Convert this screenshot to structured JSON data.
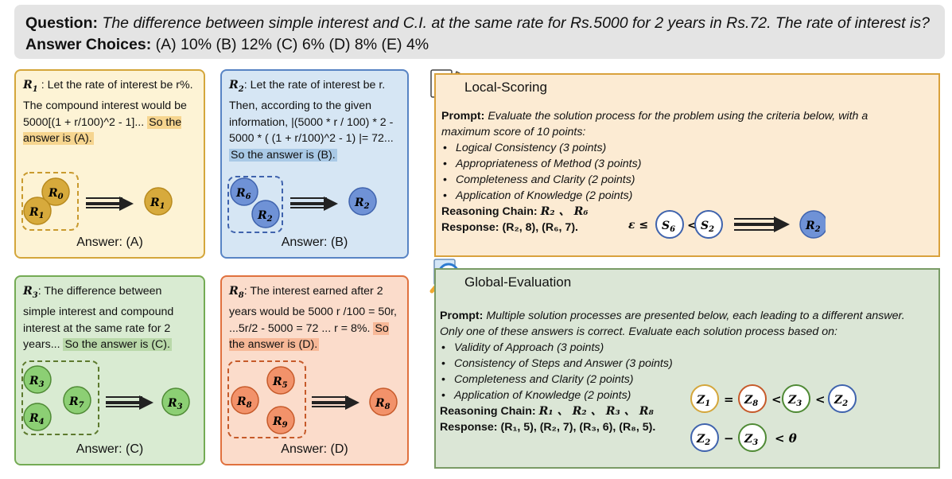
{
  "question": {
    "label": "Question:",
    "text": "The difference between simple interest and C.I. at the same rate for Rs.5000 for 2 years in Rs.72. The rate of interest is?",
    "choices_label": "Answer Choices:",
    "choices": "(A) 10% (B) 12% (C) 6% (D) 8% (E) 4%"
  },
  "cards": [
    {
      "label": "R",
      "sub": "1",
      "text": " : Let the rate of interest be r%. The compound interest would be 5000[(1 + r/100)^2 - 1]... ",
      "highlight": "So the answer is (A).",
      "answer": "Answer: (A)",
      "nodes": [
        {
          "t": "R",
          "s": "0"
        },
        {
          "t": "R",
          "s": "1"
        }
      ],
      "result": {
        "t": "R",
        "s": "1"
      },
      "color": "#d7aa3c",
      "stroke": "#b88a1e",
      "dash": "#c99a2e"
    },
    {
      "label": "R",
      "sub": "2",
      "text": ": Let the rate of interest be r. Then, according to the given information, |(5000 * r / 100) * 2 - 5000 * ( (1 + r/100)^2 - 1) |= 72... ",
      "highlight": "So the answer is (B).",
      "answer": "Answer: (B)",
      "nodes": [
        {
          "t": "R",
          "s": "6"
        },
        {
          "t": "R",
          "s": "2"
        }
      ],
      "result": {
        "t": "R",
        "s": "2"
      },
      "color": "#6f92d6",
      "stroke": "#3f63ad",
      "dash": "#3f63ad"
    },
    {
      "label": "R",
      "sub": "3",
      "text": ": The difference between simple interest and compound interest at the same rate for 2 years... ",
      "highlight": "So the answer is (C).",
      "answer": "Answer: (C)",
      "nodes": [
        {
          "t": "R",
          "s": "3"
        },
        {
          "t": "R",
          "s": "7"
        },
        {
          "t": "R",
          "s": "4"
        }
      ],
      "result": {
        "t": "R",
        "s": "3"
      },
      "color": "#8ccf74",
      "stroke": "#4f8a35",
      "dash": "#5d7a2e"
    },
    {
      "label": "R",
      "sub": "8",
      "text": ": The interest earned after 2 years would be 5000 r /100 = 50r, ...5r/2 - 5000 = 72 ... r = 8%. ",
      "highlight": "So the answer is (D).",
      "answer": "Answer: (D)",
      "nodes": [
        {
          "t": "R",
          "s": "5"
        },
        {
          "t": "R",
          "s": "8"
        },
        {
          "t": "R",
          "s": "9"
        }
      ],
      "result": {
        "t": "R",
        "s": "8"
      },
      "color": "#f2926a",
      "stroke": "#c65a2a",
      "dash": "#c65a2a"
    }
  ],
  "local": {
    "title": "Local-Scoring",
    "prompt_label": "Prompt:",
    "prompt_text": "Evaluate the solution process for the problem using the criteria below, with a maximum score of 10 points:",
    "criteria": [
      "Logical Consistency (3 points)",
      "Appropriateness of Method (3 points)",
      "Completeness and Clarity (2 points)",
      "Application of Knowledge (2 points)"
    ],
    "chain_label": "Reasoning Chain:",
    "chain": "R₂ 、 R₆",
    "response_label": "Response:",
    "response": "(R₂, 8), (R₆, 7).",
    "formula": {
      "eps": "ε ≤",
      "lt": "<",
      "s1": "S",
      "s1sub": "6",
      "s2": "S",
      "s2sub": "2",
      "r": "R",
      "rsub": "2"
    }
  },
  "global": {
    "title": "Global-Evaluation",
    "prompt_label": "Prompt:",
    "prompt_text_1": "Multiple solution processes are presented below, each leading to a different answer.",
    "prompt_text_2": "Only one of these answers is correct. Evaluate each solution process based on:",
    "criteria": [
      "Validity of Approach (3 points)",
      "Consistency of Steps and Answer (3 points)",
      "Completeness and Clarity (2 points)",
      "Application of Knowledge (2 points)"
    ],
    "chain_label": "Reasoning Chain:",
    "chain": "R₁ 、 R₂ 、 R₃ 、 R₈",
    "response_label": "Response:",
    "response": "(R₁, 5), (R₂, 7), (R₃, 6), (R₈, 5).",
    "formula": {
      "eq": "=",
      "lt": "<",
      "minus": "−",
      "theta": "< θ"
    }
  }
}
